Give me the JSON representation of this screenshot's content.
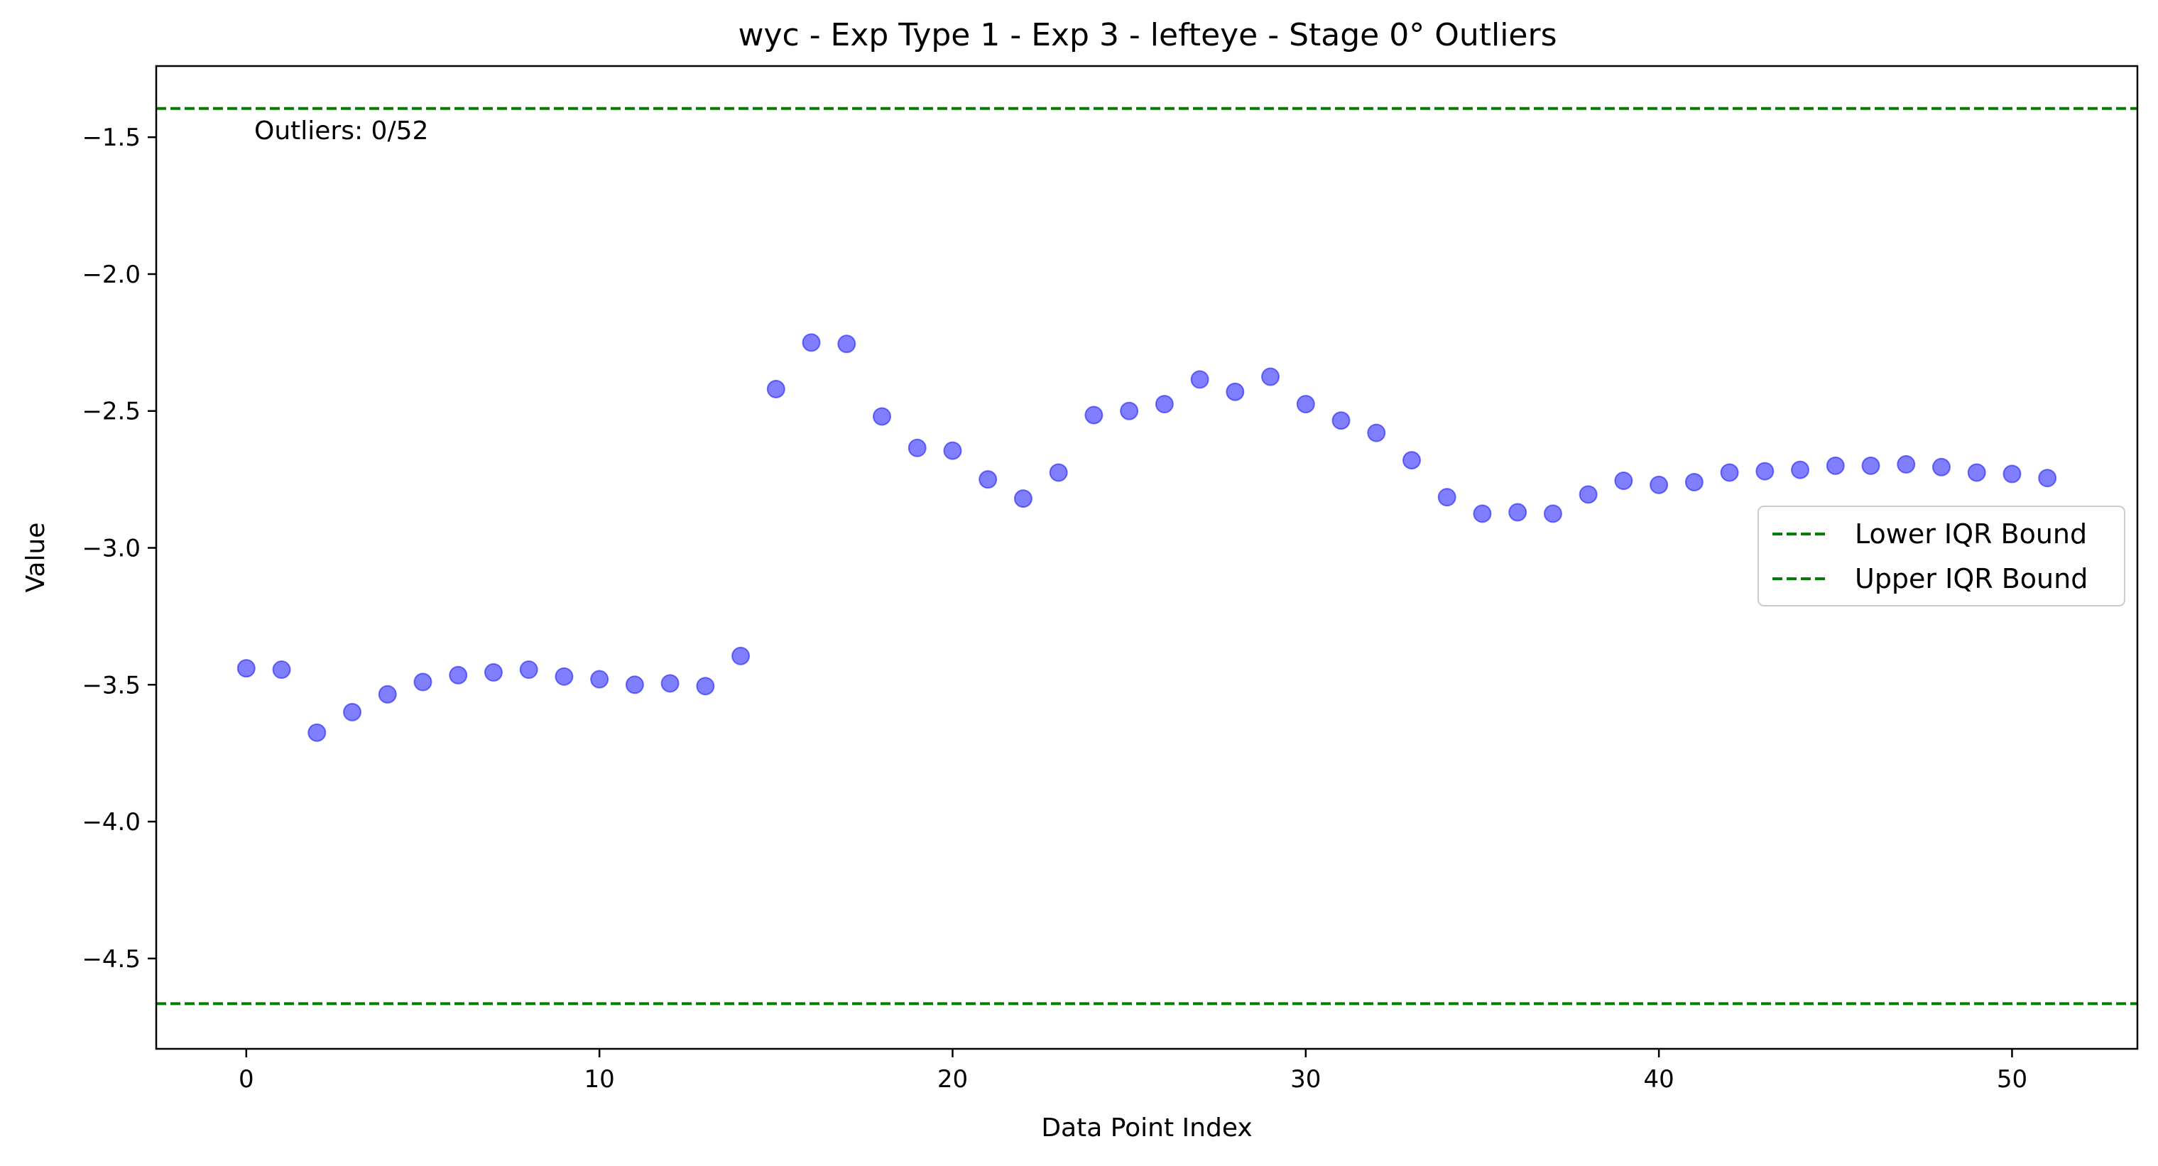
{
  "chart_data": {
    "type": "scatter",
    "title": "wyc - Exp Type 1 - Exp 3 - lefteye - Stage 0° Outliers",
    "xlabel": "Data Point Index",
    "ylabel": "Value",
    "xlim": [
      -2.55,
      53.55
    ],
    "ylim": [
      -4.83,
      -1.24
    ],
    "xticks": [
      0,
      10,
      20,
      30,
      40,
      50
    ],
    "xtick_labels": [
      "0",
      "10",
      "20",
      "30",
      "40",
      "50"
    ],
    "yticks": [
      -1.5,
      -2.0,
      -2.5,
      -3.0,
      -3.5,
      -4.0,
      -4.5
    ],
    "ytick_labels": [
      "−1.5",
      "−2.0",
      "−2.5",
      "−3.0",
      "−3.5",
      "−4.0",
      "−4.5"
    ],
    "grid": false,
    "legend_position": "center-right",
    "annotation": "Outliers: 0/52",
    "series": [
      {
        "kind": "points",
        "color": "#0000ff",
        "alpha": 0.5,
        "x": [
          0,
          1,
          2,
          3,
          4,
          5,
          6,
          7,
          8,
          9,
          10,
          11,
          12,
          13,
          14,
          15,
          16,
          17,
          18,
          19,
          20,
          21,
          22,
          23,
          24,
          25,
          26,
          27,
          28,
          29,
          30,
          31,
          32,
          33,
          34,
          35,
          36,
          37,
          38,
          39,
          40,
          41,
          42,
          43,
          44,
          45,
          46,
          47,
          48,
          49,
          50,
          51
        ],
        "y": [
          -3.44,
          -3.445,
          -3.675,
          -3.6,
          -3.535,
          -3.49,
          -3.465,
          -3.455,
          -3.445,
          -3.47,
          -3.48,
          -3.5,
          -3.495,
          -3.505,
          -3.395,
          -2.42,
          -2.25,
          -2.255,
          -2.52,
          -2.635,
          -2.645,
          -2.75,
          -2.82,
          -2.725,
          -2.515,
          -2.5,
          -2.475,
          -2.385,
          -2.43,
          -2.375,
          -2.475,
          -2.535,
          -2.58,
          -2.68,
          -2.815,
          -2.875,
          -2.87,
          -2.875,
          -2.805,
          -2.755,
          -2.77,
          -2.76,
          -2.725,
          -2.72,
          -2.715,
          -2.7,
          -2.7,
          -2.695,
          -2.705,
          -2.725,
          -2.73,
          -2.745
        ]
      },
      {
        "kind": "hline",
        "name": "Lower IQR Bound",
        "color": "#008000",
        "style": "dashed",
        "y": -4.665
      },
      {
        "kind": "hline",
        "name": "Upper IQR Bound",
        "color": "#008000",
        "style": "dashed",
        "y": -1.395
      }
    ]
  }
}
